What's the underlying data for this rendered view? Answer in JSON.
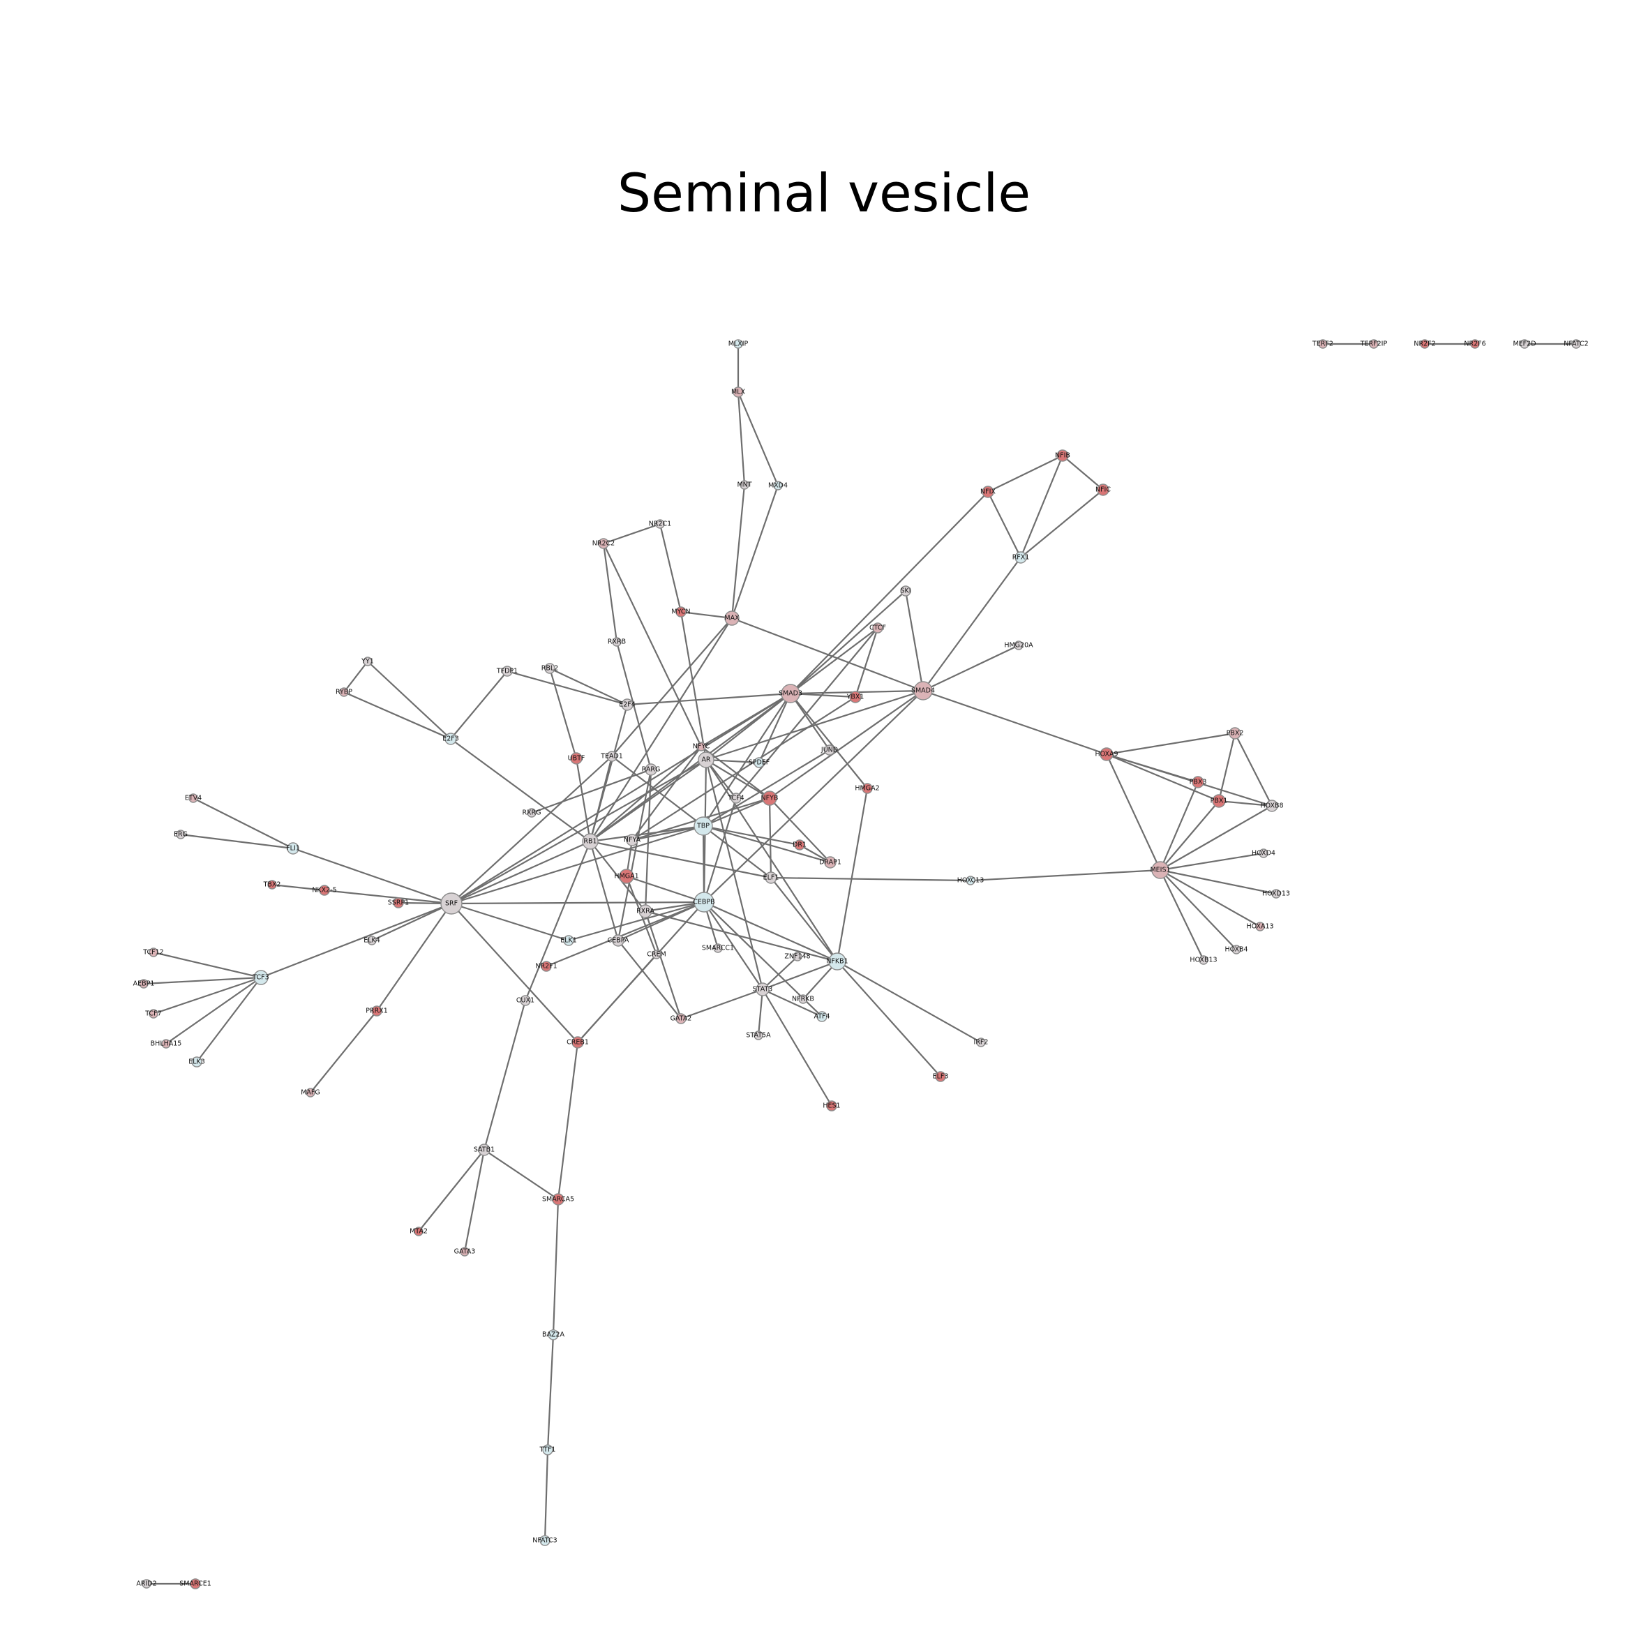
{
  "title": "Seminal vesicle",
  "colors": {
    "red": "#d97676",
    "pink": "#dbb3b6",
    "grey": "#d8d2d4",
    "blue": "#d4e8ec",
    "edge": "#6e6e6e"
  },
  "nodes": [
    {
      "id": "MLXIP",
      "c": "blue",
      "r": 6
    },
    {
      "id": "MLX",
      "c": "pink",
      "r": 7
    },
    {
      "id": "MNT",
      "c": "grey",
      "r": 6
    },
    {
      "id": "MXD4",
      "c": "blue",
      "r": 6
    },
    {
      "id": "NR2C1",
      "c": "grey",
      "r": 6
    },
    {
      "id": "NR2C2",
      "c": "pink",
      "r": 7
    },
    {
      "id": "MYCN",
      "c": "red",
      "r": 7
    },
    {
      "id": "MAX",
      "c": "pink",
      "r": 10
    },
    {
      "id": "RXRB",
      "c": "grey",
      "r": 6
    },
    {
      "id": "NFIB",
      "c": "red",
      "r": 8
    },
    {
      "id": "NFIX",
      "c": "red",
      "r": 8
    },
    {
      "id": "NFIC",
      "c": "red",
      "r": 8
    },
    {
      "id": "RFX1",
      "c": "blue",
      "r": 8
    },
    {
      "id": "SKI",
      "c": "grey",
      "r": 7
    },
    {
      "id": "CTCF",
      "c": "pink",
      "r": 7
    },
    {
      "id": "HMG20A",
      "c": "grey",
      "r": 6
    },
    {
      "id": "SMAD3",
      "c": "pink",
      "r": 13
    },
    {
      "id": "SMAD4",
      "c": "pink",
      "r": 13
    },
    {
      "id": "YBX1",
      "c": "red",
      "r": 8
    },
    {
      "id": "YY1",
      "c": "grey",
      "r": 6
    },
    {
      "id": "RYBP",
      "c": "pink",
      "r": 6
    },
    {
      "id": "TFDP1",
      "c": "grey",
      "r": 7
    },
    {
      "id": "RBL2",
      "c": "grey",
      "r": 7
    },
    {
      "id": "E2F4",
      "c": "grey",
      "r": 8
    },
    {
      "id": "E2F3",
      "c": "blue",
      "r": 8
    },
    {
      "id": "UBTF",
      "c": "red",
      "r": 8
    },
    {
      "id": "TEAD1",
      "c": "grey",
      "r": 7
    },
    {
      "id": "NFYC",
      "c": "pink",
      "r": 6
    },
    {
      "id": "AR",
      "c": "grey",
      "r": 11
    },
    {
      "id": "SPDEF",
      "c": "blue",
      "r": 7
    },
    {
      "id": "RARG",
      "c": "grey",
      "r": 8
    },
    {
      "id": "JUND",
      "c": "grey",
      "r": 7
    },
    {
      "id": "HOXA9",
      "c": "red",
      "r": 9
    },
    {
      "id": "PBX2",
      "c": "pink",
      "r": 8
    },
    {
      "id": "PBX3",
      "c": "red",
      "r": 8
    },
    {
      "id": "PBX1",
      "c": "red",
      "r": 9
    },
    {
      "id": "HOXB8",
      "c": "grey",
      "r": 8
    },
    {
      "id": "HMGA2",
      "c": "red",
      "r": 7
    },
    {
      "id": "TCF4",
      "c": "grey",
      "r": 7
    },
    {
      "id": "NFYB",
      "c": "red",
      "r": 10
    },
    {
      "id": "ETV4",
      "c": "pink",
      "r": 6
    },
    {
      "id": "RXRG",
      "c": "grey",
      "r": 6
    },
    {
      "id": "TBP",
      "c": "blue",
      "r": 13
    },
    {
      "id": "ERG",
      "c": "grey",
      "r": 6
    },
    {
      "id": "FLI1",
      "c": "blue",
      "r": 8
    },
    {
      "id": "RB1",
      "c": "grey",
      "r": 11
    },
    {
      "id": "NFYA",
      "c": "grey",
      "r": 8
    },
    {
      "id": "DR1",
      "c": "red",
      "r": 7
    },
    {
      "id": "DRAP1",
      "c": "pink",
      "r": 8
    },
    {
      "id": "HOXD4",
      "c": "grey",
      "r": 6
    },
    {
      "id": "TBX2",
      "c": "red",
      "r": 6
    },
    {
      "id": "NKX2-5",
      "c": "red",
      "r": 7
    },
    {
      "id": "HMGA1",
      "c": "red",
      "r": 10
    },
    {
      "id": "ELF1",
      "c": "grey",
      "r": 8
    },
    {
      "id": "HOXC13",
      "c": "blue",
      "r": 6
    },
    {
      "id": "MEIS1",
      "c": "pink",
      "r": 12
    },
    {
      "id": "HOXD13",
      "c": "grey",
      "r": 6
    },
    {
      "id": "SSRP1",
      "c": "red",
      "r": 7
    },
    {
      "id": "SRF",
      "c": "grey",
      "r": 15
    },
    {
      "id": "CEBPB",
      "c": "blue",
      "r": 14
    },
    {
      "id": "RXRA",
      "c": "grey",
      "r": 9
    },
    {
      "id": "ELK4",
      "c": "grey",
      "r": 6
    },
    {
      "id": "ELK1",
      "c": "blue",
      "r": 7
    },
    {
      "id": "CEBPA",
      "c": "grey",
      "r": 8
    },
    {
      "id": "SMARCC1",
      "c": "grey",
      "r": 6
    },
    {
      "id": "HOXA13",
      "c": "pink",
      "r": 6
    },
    {
      "id": "TCF12",
      "c": "pink",
      "r": 6
    },
    {
      "id": "HOXB4",
      "c": "grey",
      "r": 6
    },
    {
      "id": "HOXB13",
      "c": "grey",
      "r": 6
    },
    {
      "id": "CREM",
      "c": "grey",
      "r": 6
    },
    {
      "id": "ZNF148",
      "c": "grey",
      "r": 6
    },
    {
      "id": "NFKB1",
      "c": "blue",
      "r": 12
    },
    {
      "id": "TCF3",
      "c": "blue",
      "r": 10
    },
    {
      "id": "AEBP1",
      "c": "pink",
      "r": 6
    },
    {
      "id": "NR2F1",
      "c": "red",
      "r": 7
    },
    {
      "id": "STAT3",
      "c": "grey",
      "r": 9
    },
    {
      "id": "NFRKB",
      "c": "grey",
      "r": 6
    },
    {
      "id": "CUX1",
      "c": "grey",
      "r": 7
    },
    {
      "id": "TCF7",
      "c": "pink",
      "r": 6
    },
    {
      "id": "ATF4",
      "c": "blue",
      "r": 7
    },
    {
      "id": "PRRX1",
      "c": "red",
      "r": 7
    },
    {
      "id": "GATA2",
      "c": "pink",
      "r": 7
    },
    {
      "id": "BHLHA15",
      "c": "pink",
      "r": 6
    },
    {
      "id": "STAT5A",
      "c": "grey",
      "r": 6
    },
    {
      "id": "CREB1",
      "c": "red",
      "r": 8
    },
    {
      "id": "IRF2",
      "c": "grey",
      "r": 6
    },
    {
      "id": "ELK3",
      "c": "blue",
      "r": 7
    },
    {
      "id": "ELF3",
      "c": "red",
      "r": 7
    },
    {
      "id": "MAFG",
      "c": "pink",
      "r": 6
    },
    {
      "id": "HES1",
      "c": "red",
      "r": 7
    },
    {
      "id": "SATB1",
      "c": "grey",
      "r": 8
    },
    {
      "id": "SMARCA5",
      "c": "red",
      "r": 8
    },
    {
      "id": "MTA2",
      "c": "red",
      "r": 6
    },
    {
      "id": "GATA3",
      "c": "pink",
      "r": 6
    },
    {
      "id": "BAZ2A",
      "c": "blue",
      "r": 7
    },
    {
      "id": "TTF1",
      "c": "blue",
      "r": 7
    },
    {
      "id": "NFATC3",
      "c": "blue",
      "r": 7
    },
    {
      "id": "ARID2",
      "c": "grey",
      "r": 6
    },
    {
      "id": "SMARCE1",
      "c": "red",
      "r": 7
    },
    {
      "id": "TERF2",
      "c": "pink",
      "r": 6
    },
    {
      "id": "TERF2IP",
      "c": "pink",
      "r": 6
    },
    {
      "id": "NR2F2",
      "c": "red",
      "r": 6
    },
    {
      "id": "NR2F6",
      "c": "red",
      "r": 6
    },
    {
      "id": "MEF2D",
      "c": "grey",
      "r": 6
    },
    {
      "id": "NFATC2",
      "c": "grey",
      "r": 6
    }
  ],
  "edges": [
    [
      "MLXIP",
      "MLX"
    ],
    [
      "MLX",
      "MNT"
    ],
    [
      "MLX",
      "MXD4"
    ],
    [
      "MNT",
      "MAX"
    ],
    [
      "MXD4",
      "MAX"
    ],
    [
      "NR2C1",
      "NR2C2"
    ],
    [
      "NR2C1",
      "MYCN"
    ],
    [
      "NR2C2",
      "RXRB"
    ],
    [
      "NR2C2",
      "NFYC"
    ],
    [
      "MYCN",
      "MAX"
    ],
    [
      "MYCN",
      "AR"
    ],
    [
      "MAX",
      "SMAD4"
    ],
    [
      "MAX",
      "TEAD1"
    ],
    [
      "MAX",
      "RB1"
    ],
    [
      "NFIB",
      "NFIX"
    ],
    [
      "NFIB",
      "NFIC"
    ],
    [
      "NFIB",
      "RFX1"
    ],
    [
      "NFIX",
      "RFX1"
    ],
    [
      "NFIC",
      "RFX1"
    ],
    [
      "NFIX",
      "SMAD3"
    ],
    [
      "RFX1",
      "SMAD4"
    ],
    [
      "SKI",
      "SMAD3"
    ],
    [
      "SKI",
      "SMAD4"
    ],
    [
      "CTCF",
      "SMAD3"
    ],
    [
      "CTCF",
      "YBX1"
    ],
    [
      "CTCF",
      "TCF4"
    ],
    [
      "HMG20A",
      "SMAD4"
    ],
    [
      "SMAD3",
      "SMAD4"
    ],
    [
      "SMAD3",
      "YBX1"
    ],
    [
      "SMAD3",
      "E2F4"
    ],
    [
      "SMAD3",
      "NFYC"
    ],
    [
      "SMAD3",
      "AR"
    ],
    [
      "SMAD3",
      "SPDEF"
    ],
    [
      "SMAD3",
      "JUND"
    ],
    [
      "SMAD3",
      "HMGA2"
    ],
    [
      "SMAD3",
      "TBP"
    ],
    [
      "SMAD3",
      "SRF"
    ],
    [
      "SMAD3",
      "RB1"
    ],
    [
      "SMAD4",
      "AR"
    ],
    [
      "SMAD4",
      "HOXA9"
    ],
    [
      "SMAD4",
      "CEBPB"
    ],
    [
      "SMAD4",
      "NFYB"
    ],
    [
      "YBX1",
      "NFYA"
    ],
    [
      "YY1",
      "RYBP"
    ],
    [
      "YY1",
      "E2F3"
    ],
    [
      "RYBP",
      "E2F3"
    ],
    [
      "TFDP1",
      "E2F3"
    ],
    [
      "TFDP1",
      "E2F4"
    ],
    [
      "RBL2",
      "E2F4"
    ],
    [
      "RBL2",
      "UBTF"
    ],
    [
      "E2F4",
      "RB1"
    ],
    [
      "RXRB",
      "RARG"
    ],
    [
      "E2F3",
      "RB1"
    ],
    [
      "UBTF",
      "RB1"
    ],
    [
      "TEAD1",
      "SRF"
    ],
    [
      "TEAD1",
      "TBP"
    ],
    [
      "TEAD1",
      "RB1"
    ],
    [
      "NFYC",
      "NFYB"
    ],
    [
      "NFYC",
      "NFYA"
    ],
    [
      "NFYC",
      "RB1"
    ],
    [
      "AR",
      "SPDEF"
    ],
    [
      "AR",
      "TCF4"
    ],
    [
      "AR",
      "NFYB"
    ],
    [
      "AR",
      "RB1"
    ],
    [
      "AR",
      "SRF"
    ],
    [
      "AR",
      "STAT3"
    ],
    [
      "AR",
      "NFKB1"
    ],
    [
      "AR",
      "CEBPB"
    ],
    [
      "RARG",
      "RXRA"
    ],
    [
      "RARG",
      "CEBPA"
    ],
    [
      "JUND",
      "TBP"
    ],
    [
      "HOXA9",
      "PBX2"
    ],
    [
      "HOXA9",
      "PBX3"
    ],
    [
      "HOXA9",
      "PBX1"
    ],
    [
      "HOXA9",
      "HOXB8"
    ],
    [
      "HOXA9",
      "MEIS1"
    ],
    [
      "PBX2",
      "PBX1"
    ],
    [
      "PBX2",
      "HOXB8"
    ],
    [
      "PBX3",
      "MEIS1"
    ],
    [
      "PBX1",
      "MEIS1"
    ],
    [
      "PBX1",
      "HOXB8"
    ],
    [
      "HOXB8",
      "MEIS1"
    ],
    [
      "HMGA2",
      "NFKB1"
    ],
    [
      "TCF4",
      "CEBPB"
    ],
    [
      "NFYB",
      "NFYA"
    ],
    [
      "NFYB",
      "TBP"
    ],
    [
      "NFYB",
      "DRAP1"
    ],
    [
      "NFYB",
      "ELF1"
    ],
    [
      "ETV4",
      "FLI1"
    ],
    [
      "ERG",
      "FLI1"
    ],
    [
      "FLI1",
      "SRF"
    ],
    [
      "RXRG",
      "RARG"
    ],
    [
      "TBP",
      "DR1"
    ],
    [
      "TBP",
      "DRAP1"
    ],
    [
      "TBP",
      "RB1"
    ],
    [
      "TBP",
      "NFYA"
    ],
    [
      "TBP",
      "SRF"
    ],
    [
      "TBP",
      "ELF1"
    ],
    [
      "TBP",
      "CEBPB"
    ],
    [
      "RB1",
      "ELF1"
    ],
    [
      "RB1",
      "CEBPA"
    ],
    [
      "RB1",
      "SRF"
    ],
    [
      "RB1",
      "CUX1"
    ],
    [
      "RB1",
      "RXRA"
    ],
    [
      "NFYA",
      "HMGA1"
    ],
    [
      "DR1",
      "DRAP1"
    ],
    [
      "HOXD4",
      "MEIS1"
    ],
    [
      "TBX2",
      "NKX2-5"
    ],
    [
      "NKX2-5",
      "SRF"
    ],
    [
      "HMGA1",
      "CREM"
    ],
    [
      "HMGA1",
      "CEBPB"
    ],
    [
      "ELF1",
      "NFKB1"
    ],
    [
      "ELF1",
      "HOXC13"
    ],
    [
      "HOXC13",
      "MEIS1"
    ],
    [
      "MEIS1",
      "HOXD13"
    ],
    [
      "MEIS1",
      "HOXA13"
    ],
    [
      "MEIS1",
      "HOXB4"
    ],
    [
      "MEIS1",
      "HOXB13"
    ],
    [
      "SSRP1",
      "SRF"
    ],
    [
      "SRF",
      "CEBPB"
    ],
    [
      "SRF",
      "ELK4"
    ],
    [
      "SRF",
      "ELK1"
    ],
    [
      "SRF",
      "TCF3"
    ],
    [
      "SRF",
      "PRRX1"
    ],
    [
      "SRF",
      "CREB1"
    ],
    [
      "CEBPB",
      "RXRA"
    ],
    [
      "CEBPB",
      "CEBPA"
    ],
    [
      "CEBPB",
      "SMARCC1"
    ],
    [
      "CEBPB",
      "CREB1"
    ],
    [
      "CEBPB",
      "NFKB1"
    ],
    [
      "CEBPB",
      "NR2F1"
    ],
    [
      "CEBPB",
      "STAT3"
    ],
    [
      "CEBPB",
      "ATF4"
    ],
    [
      "CEBPB",
      "ELK1"
    ],
    [
      "RXRA",
      "GATA2"
    ],
    [
      "RXRA",
      "NFKB1"
    ],
    [
      "CEBPA",
      "GATA2"
    ],
    [
      "CREM",
      "CREB1"
    ],
    [
      "ZNF148",
      "STAT3"
    ],
    [
      "NFKB1",
      "STAT3"
    ],
    [
      "NFKB1",
      "NFRKB"
    ],
    [
      "NFKB1",
      "IRF2"
    ],
    [
      "NFKB1",
      "ELF3"
    ],
    [
      "TCF12",
      "TCF3"
    ],
    [
      "AEBP1",
      "TCF3"
    ],
    [
      "TCF7",
      "TCF3"
    ],
    [
      "BHLHA15",
      "TCF3"
    ],
    [
      "ELK3",
      "TCF3"
    ],
    [
      "STAT3",
      "GATA2"
    ],
    [
      "STAT3",
      "STAT5A"
    ],
    [
      "STAT3",
      "HES1"
    ],
    [
      "STAT3",
      "ATF4"
    ],
    [
      "CUX1",
      "SATB1"
    ],
    [
      "PRRX1",
      "MAFG"
    ],
    [
      "CREB1",
      "SMARCA5"
    ],
    [
      "SATB1",
      "SMARCA5"
    ],
    [
      "SATB1",
      "MTA2"
    ],
    [
      "SATB1",
      "GATA3"
    ],
    [
      "SMARCA5",
      "BAZ2A"
    ],
    [
      "BAZ2A",
      "TTF1"
    ],
    [
      "TTF1",
      "NFATC3"
    ],
    [
      "ARID2",
      "SMARCE1"
    ],
    [
      "TERF2",
      "TERF2IP"
    ],
    [
      "NR2F2",
      "NR2F6"
    ],
    [
      "MEF2D",
      "NFATC2"
    ]
  ]
}
